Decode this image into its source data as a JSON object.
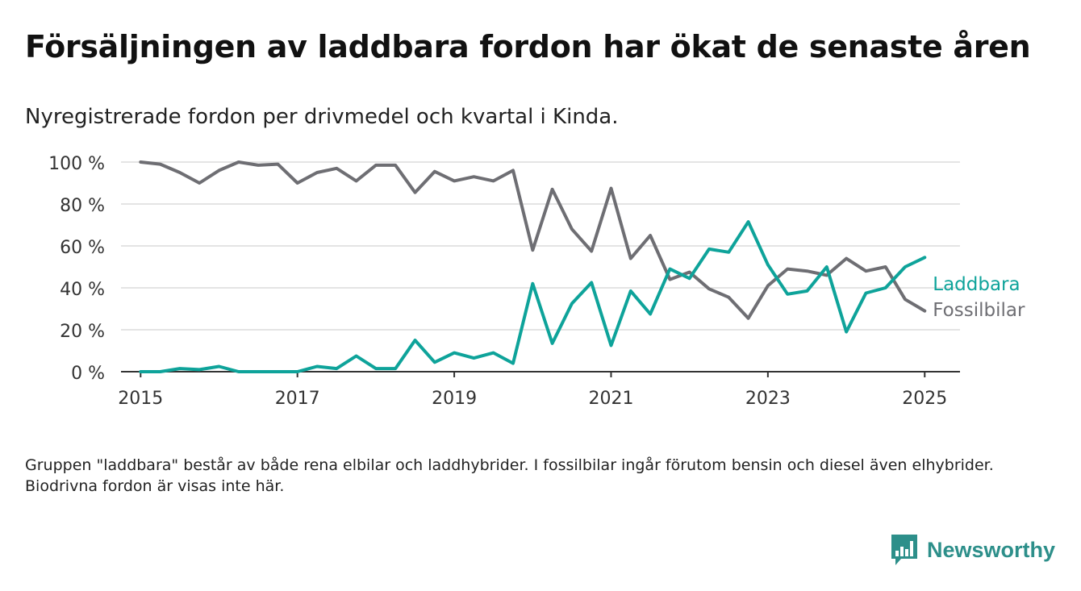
{
  "title": "Försäljningen av laddbara fordon har ökat de senaste åren",
  "subtitle": "Nyregistrerade fordon per drivmedel och kvartal i Kinda.",
  "footnote": "Gruppen \"laddbara\" består av både rena elbilar och laddhybrider. I fossilbilar ingår förutom bensin och diesel även elhybrider. Biodrivna fordon är visas inte här.",
  "brand": {
    "name": "Newsworthy",
    "icon": "newsworthy-logo-icon",
    "color": "#2d8f8a"
  },
  "chart_data": {
    "type": "line",
    "x_start": 2015,
    "x_step": 0.25,
    "xlim": [
      2014.75,
      2025.45
    ],
    "ylim": [
      0,
      100
    ],
    "x_ticks": [
      {
        "value": 2015,
        "label": "2015"
      },
      {
        "value": 2017,
        "label": "2017"
      },
      {
        "value": 2019,
        "label": "2019"
      },
      {
        "value": 2021,
        "label": "2021"
      },
      {
        "value": 2023,
        "label": "2023"
      },
      {
        "value": 2025,
        "label": "2025"
      }
    ],
    "y_ticks": [
      {
        "value": 0,
        "label": "0 %"
      },
      {
        "value": 20,
        "label": "20 %"
      },
      {
        "value": 40,
        "label": "40 %"
      },
      {
        "value": 60,
        "label": "60 %"
      },
      {
        "value": 80,
        "label": "80 %"
      },
      {
        "value": 100,
        "label": "100 %"
      }
    ],
    "grid": true,
    "legend": "end-of-line labels",
    "series": [
      {
        "name": "Fossilbilar",
        "color": "#6e6e73",
        "values": [
          100,
          99,
          95,
          90,
          96,
          100,
          98.5,
          99,
          90,
          95,
          97,
          91,
          98.5,
          98.5,
          85.5,
          95.5,
          91,
          93,
          91,
          96,
          58,
          87,
          68,
          57.5,
          87.5,
          54,
          65,
          44,
          47.5,
          39.5,
          35.5,
          25.5,
          41,
          49,
          48,
          46,
          54,
          48,
          50,
          34.5,
          29
        ]
      },
      {
        "name": "Laddbara",
        "color": "#0ea39a",
        "values": [
          0,
          0,
          1.5,
          1,
          2.5,
          0,
          0,
          0,
          0,
          2.5,
          1.5,
          7.5,
          1.5,
          1.5,
          15,
          4.5,
          9,
          6.5,
          9,
          4,
          42,
          13.5,
          32.5,
          42.5,
          12.5,
          38.5,
          27.5,
          49,
          44.5,
          58.5,
          57,
          71.5,
          51,
          37,
          38.5,
          50,
          19,
          37.5,
          40,
          50,
          54.5
        ]
      }
    ]
  }
}
